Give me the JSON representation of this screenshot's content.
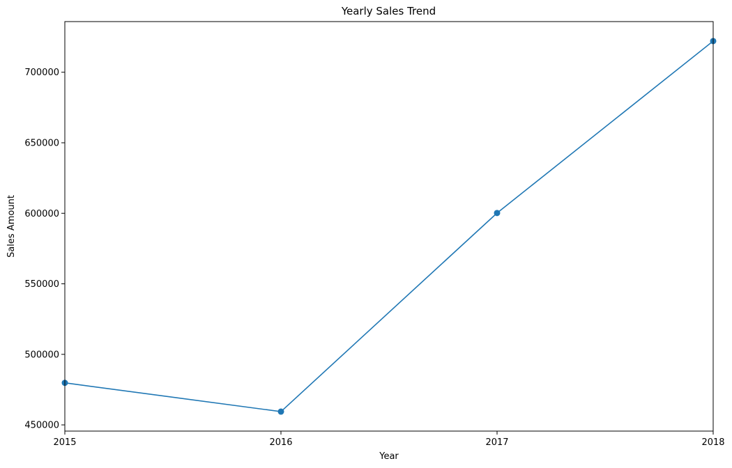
{
  "chart_data": {
    "type": "line",
    "title": "Yearly Sales Trend",
    "xlabel": "Year",
    "ylabel": "Sales Amount",
    "x": [
      2015,
      2016,
      2017,
      2018
    ],
    "x_tick_labels": [
      "2015",
      "2016",
      "2017",
      "2018"
    ],
    "series": [
      {
        "values": [
          479800,
          459400,
          600200,
          722100
        ],
        "color": "#1f77b4",
        "marker": "circle"
      }
    ],
    "xlim": [
      2015,
      2018
    ],
    "ylim": [
      445600,
      735900
    ],
    "y_ticks": [
      450000,
      500000,
      550000,
      600000,
      650000,
      700000
    ],
    "y_tick_labels": [
      "450000",
      "500000",
      "550000",
      "600000",
      "650000",
      "700000"
    ],
    "grid": false,
    "legend": "none"
  }
}
